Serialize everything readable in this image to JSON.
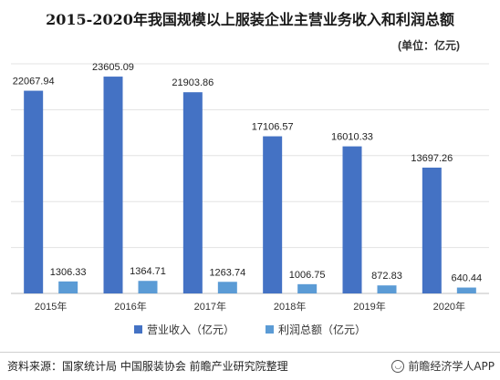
{
  "chart_data": {
    "type": "bar",
    "title": "2015-2020年我国规模以上服装企业主营业务收入和利润总额",
    "unit_label": "(单位：亿元)",
    "categories": [
      "2015年",
      "2016年",
      "2017年",
      "2018年",
      "2019年",
      "2020年"
    ],
    "series": [
      {
        "name": "营业收入（亿元）",
        "color": "#4472c4",
        "values": [
          22067.94,
          23605.09,
          21903.86,
          17106.57,
          16010.33,
          13697.26
        ]
      },
      {
        "name": "利润总额（亿元）",
        "color": "#5b9bd5",
        "values": [
          1306.33,
          1364.71,
          1263.74,
          1006.75,
          872.83,
          640.44
        ]
      }
    ],
    "ylim": [
      0,
      25000
    ],
    "grid": true,
    "legend_position": "bottom"
  },
  "footer": {
    "source": "资料来源：国家统计局 中国服装协会 前瞻产业研究院整理",
    "brand": "前瞻经济学人APP",
    "brand_icon": "wechat-icon"
  }
}
